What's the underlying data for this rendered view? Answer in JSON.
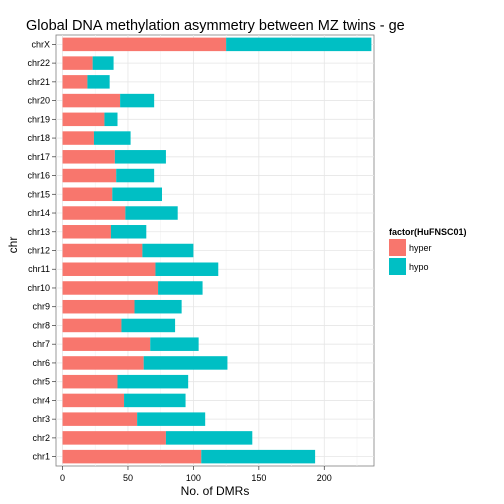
{
  "chart_data": {
    "type": "bar",
    "orientation": "horizontal",
    "stacked": true,
    "title": "Global DNA methylation asymmetry between MZ twins - ge",
    "xlabel": "No. of DMRs",
    "ylabel": "chr",
    "xlim": [
      -5,
      238
    ],
    "xticks": [
      0,
      50,
      100,
      150,
      200
    ],
    "grid": true,
    "legend_position": "right",
    "legend_title": "factor(HuFNSC01)",
    "categories": [
      "chr1",
      "chr2",
      "chr3",
      "chr4",
      "chr5",
      "chr6",
      "chr7",
      "chr8",
      "chr9",
      "chr10",
      "chr11",
      "chr12",
      "chr13",
      "chr14",
      "chr15",
      "chr16",
      "chr17",
      "chr18",
      "chr19",
      "chr20",
      "chr21",
      "chr22",
      "chrX"
    ],
    "series": [
      {
        "name": "hyper",
        "color": "#F8766D",
        "values": [
          106,
          79,
          57,
          47,
          42,
          62,
          67,
          45,
          55,
          73,
          71,
          61,
          37,
          48,
          38,
          41,
          40,
          24,
          32,
          44,
          19,
          23,
          125
        ]
      },
      {
        "name": "hypo",
        "color": "#00BFC4",
        "values": [
          87,
          66,
          52,
          47,
          54,
          64,
          37,
          41,
          36,
          34,
          48,
          39,
          27,
          40,
          38,
          29,
          39,
          28,
          10,
          26,
          17,
          16,
          111
        ]
      }
    ]
  }
}
